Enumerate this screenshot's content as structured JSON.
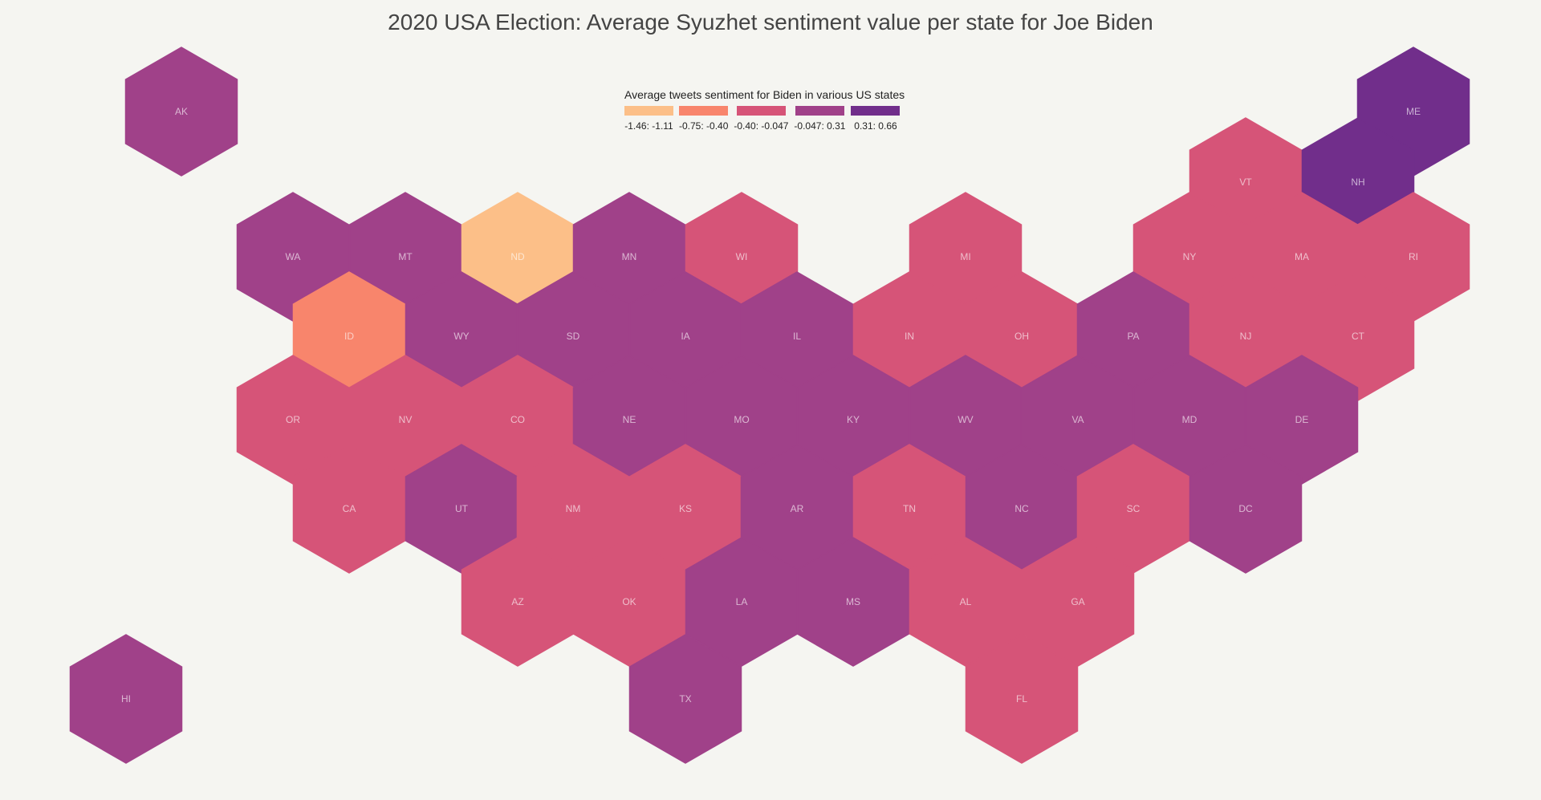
{
  "chart_data": {
    "type": "heatmap",
    "title": "2020 USA Election: Average Syuzhet sentiment value per state for Joe Biden",
    "legend": {
      "title": "Average tweets sentiment for Biden in various US states",
      "placement": "top-center",
      "bins": [
        {
          "label": "-1.46: -1.11",
          "color": "#fcbf88"
        },
        {
          "label": "-0.75: -0.40",
          "color": "#f8856c"
        },
        {
          "label": "-0.40: -0.047",
          "color": "#d65478"
        },
        {
          "label": "-0.047: 0.31",
          "color": "#a04189"
        },
        {
          "label": "0.31: 0.66",
          "color": "#712e8b"
        }
      ]
    },
    "states": [
      {
        "code": "AK",
        "bin": 3
      },
      {
        "code": "ME",
        "bin": 4
      },
      {
        "code": "VT",
        "bin": 2
      },
      {
        "code": "NH",
        "bin": 4
      },
      {
        "code": "WA",
        "bin": 3
      },
      {
        "code": "MT",
        "bin": 3
      },
      {
        "code": "ND",
        "bin": 0
      },
      {
        "code": "MN",
        "bin": 3
      },
      {
        "code": "WI",
        "bin": 2
      },
      {
        "code": "MI",
        "bin": 2
      },
      {
        "code": "NY",
        "bin": 2
      },
      {
        "code": "MA",
        "bin": 2
      },
      {
        "code": "RI",
        "bin": 2
      },
      {
        "code": "ID",
        "bin": 1
      },
      {
        "code": "WY",
        "bin": 3
      },
      {
        "code": "SD",
        "bin": 3
      },
      {
        "code": "IA",
        "bin": 3
      },
      {
        "code": "IL",
        "bin": 3
      },
      {
        "code": "IN",
        "bin": 2
      },
      {
        "code": "OH",
        "bin": 2
      },
      {
        "code": "PA",
        "bin": 3
      },
      {
        "code": "NJ",
        "bin": 2
      },
      {
        "code": "CT",
        "bin": 2
      },
      {
        "code": "OR",
        "bin": 2
      },
      {
        "code": "NV",
        "bin": 2
      },
      {
        "code": "CO",
        "bin": 2
      },
      {
        "code": "NE",
        "bin": 3
      },
      {
        "code": "MO",
        "bin": 3
      },
      {
        "code": "KY",
        "bin": 3
      },
      {
        "code": "WV",
        "bin": 3
      },
      {
        "code": "VA",
        "bin": 3
      },
      {
        "code": "MD",
        "bin": 3
      },
      {
        "code": "DE",
        "bin": 3
      },
      {
        "code": "CA",
        "bin": 2
      },
      {
        "code": "UT",
        "bin": 3
      },
      {
        "code": "NM",
        "bin": 2
      },
      {
        "code": "KS",
        "bin": 2
      },
      {
        "code": "AR",
        "bin": 3
      },
      {
        "code": "TN",
        "bin": 2
      },
      {
        "code": "NC",
        "bin": 3
      },
      {
        "code": "SC",
        "bin": 2
      },
      {
        "code": "DC",
        "bin": 3
      },
      {
        "code": "AZ",
        "bin": 2
      },
      {
        "code": "OK",
        "bin": 2
      },
      {
        "code": "LA",
        "bin": 3
      },
      {
        "code": "MS",
        "bin": 3
      },
      {
        "code": "AL",
        "bin": 2
      },
      {
        "code": "GA",
        "bin": 2
      },
      {
        "code": "HI",
        "bin": 3
      },
      {
        "code": "TX",
        "bin": 3
      },
      {
        "code": "FL",
        "bin": 2
      }
    ]
  }
}
